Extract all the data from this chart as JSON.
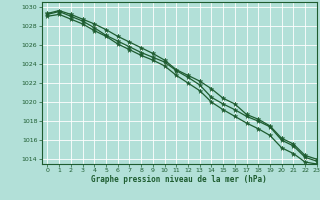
{
  "title": "Graphe pression niveau de la mer (hPa)",
  "bg_color": "#b2e0d8",
  "grid_color": "#c8e8e0",
  "line_color": "#1e5c30",
  "xlim": [
    -0.5,
    23
  ],
  "ylim": [
    1013.5,
    1030.5
  ],
  "yticks": [
    1014,
    1016,
    1018,
    1020,
    1022,
    1024,
    1026,
    1028,
    1030
  ],
  "xticks": [
    0,
    1,
    2,
    3,
    4,
    5,
    6,
    7,
    8,
    9,
    10,
    11,
    12,
    13,
    14,
    15,
    16,
    17,
    18,
    19,
    20,
    21,
    22,
    23
  ],
  "series1": [
    1029.2,
    1029.5,
    1029.0,
    1028.5,
    1027.8,
    1027.0,
    1026.4,
    1025.8,
    1025.2,
    1024.7,
    1024.2,
    1023.3,
    1022.6,
    1021.8,
    1020.5,
    1019.8,
    1019.2,
    1018.5,
    1018.0,
    1017.4,
    1016.0,
    1015.4,
    1014.2,
    1013.8
  ],
  "series2": [
    1029.3,
    1029.6,
    1029.2,
    1028.7,
    1028.2,
    1027.6,
    1026.9,
    1026.3,
    1025.7,
    1025.1,
    1024.4,
    1023.4,
    1022.8,
    1022.2,
    1021.4,
    1020.4,
    1019.8,
    1018.7,
    1018.2,
    1017.5,
    1016.2,
    1015.6,
    1014.4,
    1014.0
  ],
  "series3": [
    1029.0,
    1029.2,
    1028.7,
    1028.2,
    1027.5,
    1026.9,
    1026.1,
    1025.5,
    1024.9,
    1024.4,
    1023.8,
    1022.8,
    1022.0,
    1021.2,
    1020.0,
    1019.2,
    1018.5,
    1017.8,
    1017.2,
    1016.5,
    1015.2,
    1014.6,
    1013.7,
    1013.5
  ]
}
